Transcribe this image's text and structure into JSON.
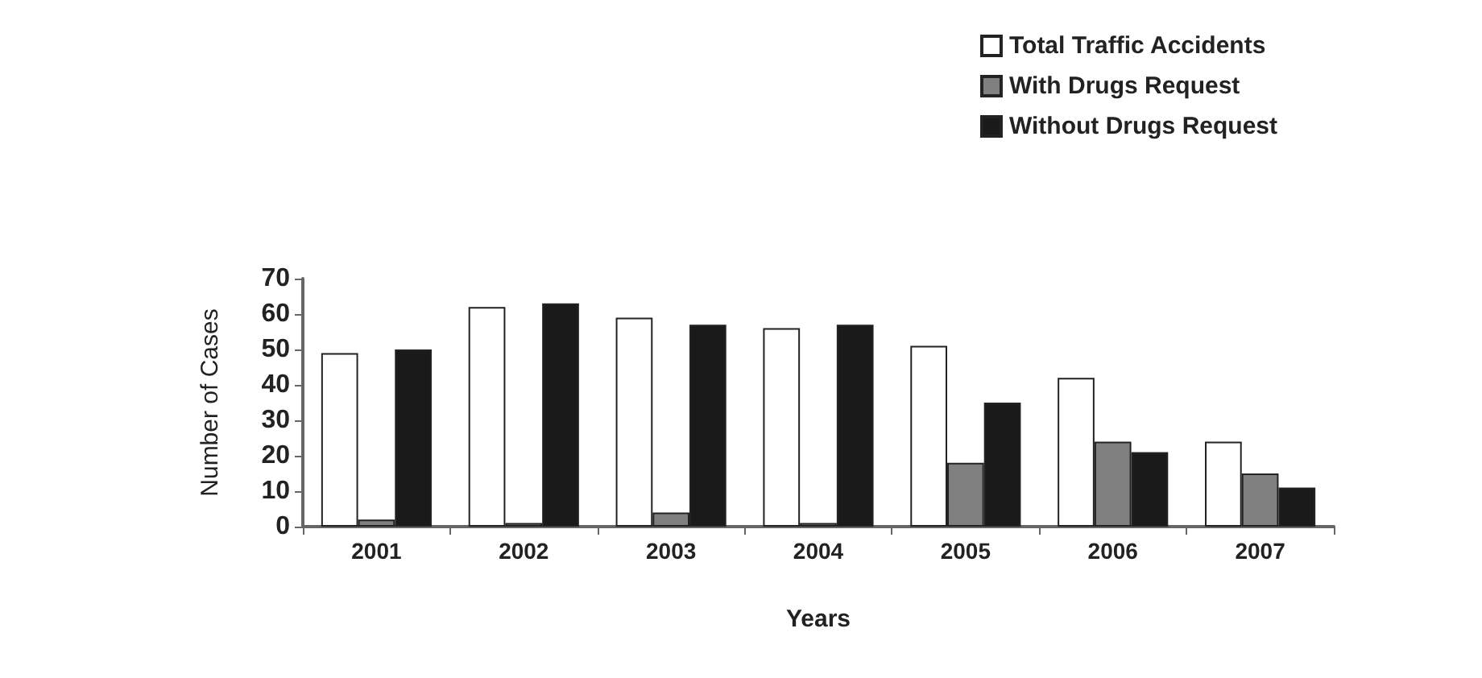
{
  "chart_data": {
    "type": "bar",
    "xlabel": "Years",
    "ylabel": "Number of Cases",
    "categories": [
      "2001",
      "2002",
      "2003",
      "2004",
      "2005",
      "2006",
      "2007"
    ],
    "series": [
      {
        "name": "Total Traffic Accidents",
        "color": "#ffffff",
        "values": [
          49,
          62,
          59,
          56,
          51,
          42,
          24
        ]
      },
      {
        "name": "With Drugs Request",
        "color": "#808080",
        "values": [
          2,
          1,
          4,
          1,
          18,
          24,
          15
        ]
      },
      {
        "name": "Without Drugs Request",
        "color": "#1a1a1a",
        "values": [
          50,
          63,
          57,
          57,
          35,
          21,
          11
        ]
      }
    ],
    "ylim": [
      0,
      70
    ],
    "yticks": [
      0,
      10,
      20,
      30,
      40,
      50,
      60,
      70
    ],
    "grid": false,
    "legend": "top right"
  }
}
